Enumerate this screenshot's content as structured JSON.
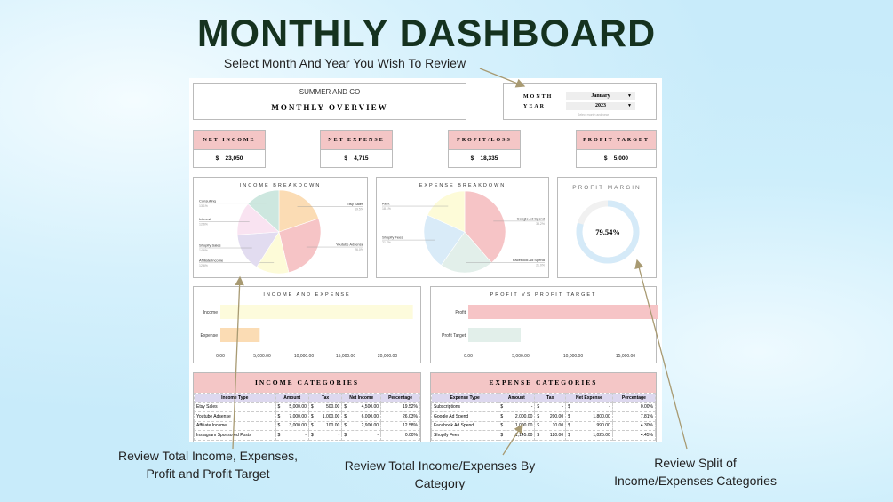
{
  "title": "MONTHLY DASHBOARD",
  "notes": {
    "select": "Select Month And Year You Wish To Review",
    "kpi": [
      "Review Total Income, Expenses,",
      "Profit and Profit Target"
    ],
    "category": [
      "Review Total Income/Expenses By",
      "Category"
    ],
    "split": [
      "Review Split of",
      "Income/Expenses Categories"
    ]
  },
  "header": {
    "company": "SUMMER AND CO",
    "subtitle": "MONTHLY OVERVIEW"
  },
  "selector": {
    "month_label": "MONTH",
    "month": "January",
    "year_label": "YEAR",
    "year": "2023",
    "hint": "Select month and year"
  },
  "kpis": [
    {
      "label": "NET INCOME",
      "cur": "$",
      "value": "23,050"
    },
    {
      "label": "NET EXPENSE",
      "cur": "$",
      "value": "4,715"
    },
    {
      "label": "PROFIT/LOSS",
      "cur": "$",
      "value": "18,335"
    },
    {
      "label": "PROFIT TARGET",
      "cur": "$",
      "value": "5,000"
    }
  ],
  "chart_data": [
    {
      "type": "pie",
      "title": "INCOME BREAKDOWN",
      "labels": [
        "Etsy Sales",
        "Youtube Adsense",
        "Affiliate Income",
        "Shopify Sales",
        "Interest",
        "Consulting"
      ],
      "values": [
        19.5,
        26.0,
        12.6,
        14.6,
        12.6,
        13.1
      ],
      "label_text": [
        "19.5%",
        "26.0%",
        "12.6%",
        "14.6%",
        "12.6%",
        "13.1%"
      ],
      "colors": [
        "#fbdcb4",
        "#f6c4c6",
        "#fdfbd8",
        "#e2dcf0",
        "#f9e3f1",
        "#cde7df"
      ]
    },
    {
      "type": "pie",
      "title": "EXPENSE BREAKDOWN",
      "labels": [
        "Google Ad Spend",
        "Facebook Ad Spend",
        "Shopify Fees",
        "Rent"
      ],
      "values": [
        38.2,
        21.0,
        21.7,
        18.1
      ],
      "label_text": [
        "38.2%",
        "21.0%",
        "21.7%",
        "18.1%"
      ],
      "colors": [
        "#f6c4c6",
        "#e2efea",
        "#d9ebf8",
        "#fdfbd8"
      ]
    },
    {
      "type": "donut",
      "title": "PROFIT MARGIN",
      "value": 79.54,
      "label": "79.54%",
      "colors": [
        "#d5eaf8",
        "#f1f1f1"
      ]
    },
    {
      "type": "bar",
      "orientation": "horizontal",
      "title": "INCOME AND EXPENSE",
      "categories": [
        "Income",
        "Expense"
      ],
      "values": [
        23050,
        4715
      ],
      "colors": [
        "#fdfbdc",
        "#fbdcb4"
      ],
      "xlim": [
        0,
        25000
      ],
      "ticks": [
        "0.00",
        "5,000.00",
        "10,000.00",
        "15,000.00",
        "20,000.00"
      ]
    },
    {
      "type": "bar",
      "orientation": "horizontal",
      "title": "PROFIT VS PROFIT TARGET",
      "categories": [
        "Profit",
        "Profit Target"
      ],
      "values": [
        18335,
        5000
      ],
      "colors": [
        "#f6c4c6",
        "#e2efea"
      ],
      "xlim": [
        0,
        20000
      ],
      "ticks": [
        "0.00",
        "5,000.00",
        "10,000.00",
        "15,000.00"
      ]
    }
  ],
  "income_table": {
    "title": "INCOME CATEGORIES",
    "headers": [
      "Income Type",
      "Amount",
      "Tax",
      "Net Income",
      "Percentage"
    ],
    "rows": [
      [
        "Etsy Sales",
        "5,000.00",
        "500.00",
        "4,500.00",
        "19.52%"
      ],
      [
        "Youtube Adsense",
        "7,000.00",
        "1,000.00",
        "6,000.00",
        "26.03%"
      ],
      [
        "Affiliate Income",
        "3,000.00",
        "100.00",
        "2,900.00",
        "12.58%"
      ],
      [
        "Instagram Sponsored Posts",
        "-",
        "-",
        "-",
        "0.00%"
      ]
    ]
  },
  "expense_table": {
    "title": "EXPENSE CATEGORIES",
    "headers": [
      "Expense Type",
      "Amount",
      "Tax",
      "Net Expense",
      "Percentage"
    ],
    "rows": [
      [
        "Subscriptions",
        "-",
        "-",
        "-",
        "0.00%"
      ],
      [
        "Google Ad Spend",
        "2,000.00",
        "200.00",
        "1,800.00",
        "7.81%"
      ],
      [
        "Facebook Ad Spend",
        "1,000.00",
        "10.00",
        "990.00",
        "4.30%"
      ],
      [
        "Shopify Fees",
        "1,145.00",
        "120.00",
        "1,025.00",
        "4.45%"
      ]
    ]
  }
}
